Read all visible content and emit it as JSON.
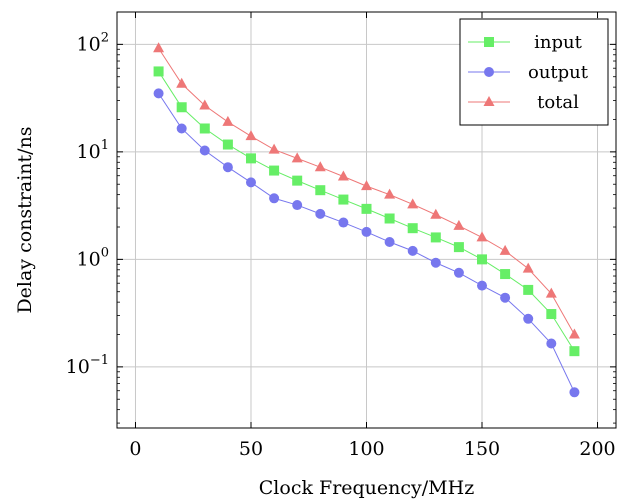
{
  "chart_data": {
    "type": "line",
    "title": "",
    "xlabel": "Clock Frequency/MHz",
    "ylabel": "Delay constraint/ns",
    "xlim": [
      -8,
      208
    ],
    "ylim": [
      0.027,
      200
    ],
    "yscale": "log",
    "grid": true,
    "legend_position": "top-right",
    "x_ticks": [
      0,
      50,
      100,
      150,
      200
    ],
    "y_ticks": [
      {
        "base": "10",
        "exp": "−1",
        "value": 0.1
      },
      {
        "base": "10",
        "exp": "0",
        "value": 1
      },
      {
        "base": "10",
        "exp": "1",
        "value": 10
      },
      {
        "base": "10",
        "exp": "2",
        "value": 100
      }
    ],
    "x": [
      10,
      20,
      30,
      40,
      50,
      60,
      70,
      80,
      90,
      100,
      110,
      120,
      130,
      140,
      150,
      160,
      170,
      180,
      190
    ],
    "series": [
      {
        "name": "input",
        "marker": "square",
        "color": "#66ee66",
        "values": [
          56,
          26,
          16.5,
          11.7,
          8.7,
          6.7,
          5.4,
          4.4,
          3.6,
          2.95,
          2.4,
          1.95,
          1.6,
          1.3,
          1.0,
          0.73,
          0.52,
          0.31,
          0.14
        ]
      },
      {
        "name": "output",
        "marker": "circle",
        "color": "#7777ee",
        "values": [
          35,
          16.5,
          10.3,
          7.2,
          5.2,
          3.7,
          3.2,
          2.65,
          2.2,
          1.8,
          1.45,
          1.2,
          0.93,
          0.75,
          0.57,
          0.44,
          0.28,
          0.165,
          0.058
        ]
      },
      {
        "name": "total",
        "marker": "triangle",
        "color": "#ee7777",
        "values": [
          92,
          43,
          27,
          19,
          14,
          10.5,
          8.7,
          7.2,
          5.9,
          4.8,
          4.0,
          3.25,
          2.6,
          2.05,
          1.6,
          1.2,
          0.82,
          0.48,
          0.2
        ]
      }
    ]
  }
}
